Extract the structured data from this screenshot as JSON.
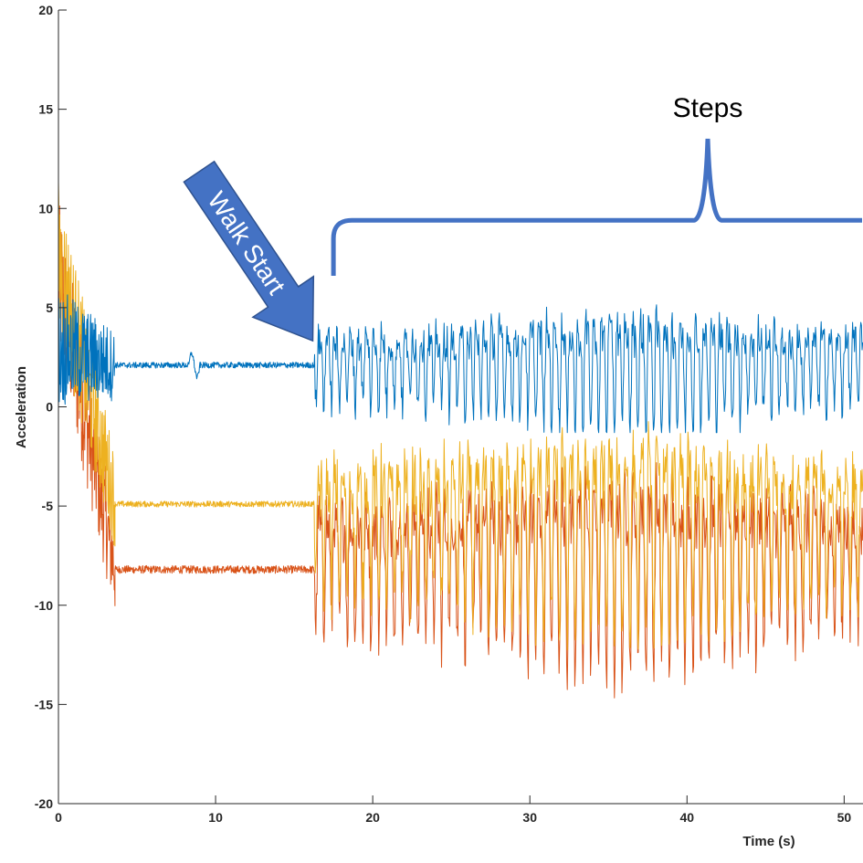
{
  "chart_data": {
    "type": "line",
    "title": "",
    "xlabel": "Time (s)",
    "ylabel": "Acceleration",
    "xlim": [
      0,
      51.2
    ],
    "ylim": [
      -20,
      20
    ],
    "xticks": [
      0,
      10,
      20,
      30,
      40,
      50
    ],
    "yticks": [
      -20,
      -15,
      -10,
      -5,
      0,
      5,
      10,
      15,
      20
    ],
    "grid": false,
    "legend": "none",
    "series": [
      {
        "color": "#0072BD",
        "phases": [
          {
            "t": [
              0.0,
              3.6
            ],
            "kind": "settle",
            "from": 3.0,
            "to": 2.1,
            "jitter": 6.0
          },
          {
            "t": [
              3.6,
              16.3
            ],
            "kind": "rest",
            "level": 2.1,
            "noise": 0.15
          },
          {
            "t": [
              16.3,
              51.2
            ],
            "kind": "walk",
            "center": 2.3,
            "amplitude": 3.0,
            "step_period": 0.5
          }
        ],
        "range_walking": [
          -1.3,
          8.8
        ]
      },
      {
        "color": "#D95319",
        "phases": [
          {
            "t": [
              0.0,
              3.6
            ],
            "kind": "settle",
            "from": 6.5,
            "to": -8.2,
            "jitter": 8.0
          },
          {
            "t": [
              3.6,
              16.3
            ],
            "kind": "rest",
            "level": -8.2,
            "noise": 0.2
          },
          {
            "t": [
              16.3,
              51.2
            ],
            "kind": "walk",
            "center": -7.5,
            "amplitude": 5.0,
            "step_period": 0.5
          }
        ],
        "range_walking": [
          -17.4,
          -2.2
        ]
      },
      {
        "color": "#EDB120",
        "phases": [
          {
            "t": [
              0.0,
              3.6
            ],
            "kind": "settle",
            "from": 7.5,
            "to": -4.8,
            "jitter": 8.0
          },
          {
            "t": [
              3.6,
              16.3
            ],
            "kind": "rest",
            "level": -4.9,
            "noise": 0.15
          },
          {
            "t": [
              16.3,
              51.2
            ],
            "kind": "walk",
            "center": -5.5,
            "amplitude": 5.0,
            "step_period": 0.5
          }
        ],
        "range_walking": [
          -13.7,
          -0.4
        ]
      }
    ],
    "annotations": [
      {
        "type": "arrow",
        "text": "Walk Start",
        "color": "#4472C4",
        "points_to": {
          "x": 16.3,
          "y": 3.1
        }
      },
      {
        "type": "brace",
        "text": "Steps",
        "color": "#4472C4",
        "span": [
          17.5,
          51.2
        ],
        "y": 9.4
      }
    ]
  }
}
